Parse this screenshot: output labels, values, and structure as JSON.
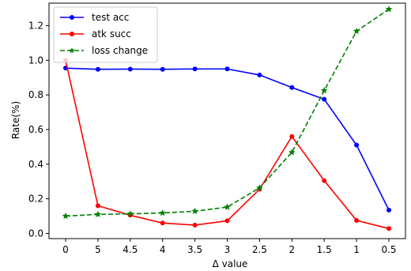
{
  "chart_data": {
    "type": "line",
    "xlabel": "Δ value",
    "ylabel": "Rate(%)",
    "categories": [
      "0",
      "5",
      "4.5",
      "4",
      "3.5",
      "3",
      "2.5",
      "2",
      "1.5",
      "1",
      "0.5"
    ],
    "ylim": [
      -0.03,
      1.33
    ],
    "yticks": [
      0.0,
      0.2,
      0.4,
      0.6,
      0.8,
      1.0,
      1.2
    ],
    "yticklabels": [
      "0.0",
      "0.2",
      "0.4",
      "0.6",
      "0.8",
      "1.0",
      "1.2"
    ],
    "grid": false,
    "legend_position": "top-left",
    "series": [
      {
        "name": "test acc",
        "color": "#0000ff",
        "linestyle": "solid",
        "marker": "circle",
        "values": [
          0.955,
          0.948,
          0.949,
          0.948,
          0.95,
          0.95,
          0.915,
          0.843,
          0.775,
          0.51,
          0.135
        ]
      },
      {
        "name": "atk succ",
        "color": "#ff0000",
        "linestyle": "solid",
        "marker": "circle",
        "values": [
          1.0,
          0.16,
          0.105,
          0.06,
          0.048,
          0.073,
          0.255,
          0.56,
          0.305,
          0.075,
          0.028
        ]
      },
      {
        "name": "loss change",
        "color": "#008000",
        "linestyle": "dashed",
        "marker": "star",
        "values": [
          0.1,
          0.11,
          0.113,
          0.118,
          0.128,
          0.152,
          0.263,
          0.468,
          0.825,
          1.168,
          1.295
        ]
      }
    ]
  }
}
